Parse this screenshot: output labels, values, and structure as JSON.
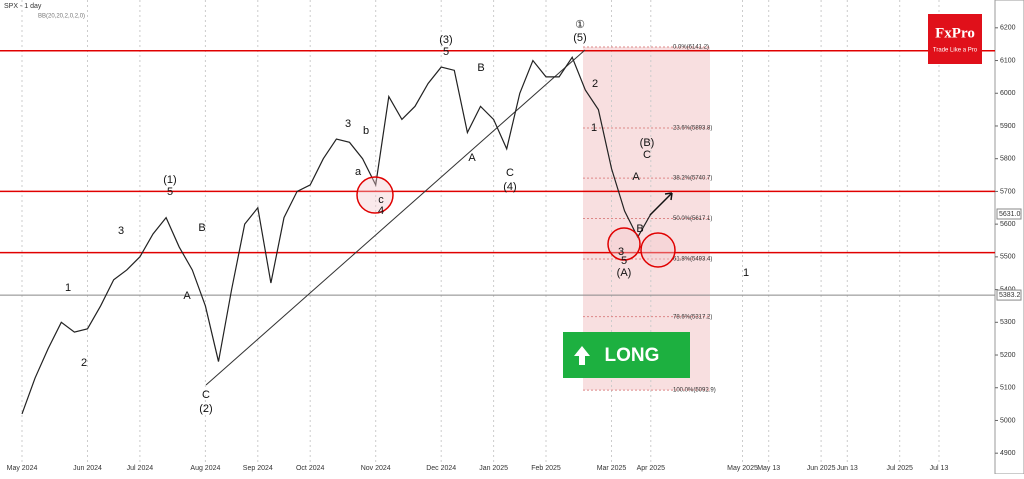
{
  "chart_data": {
    "type": "line",
    "title": "SPX - 1 day",
    "indicator": "BB(20,20,2,0,2,0)",
    "brand": {
      "name": "FxPro",
      "tagline": "Trade Like a Pro"
    },
    "signal": "LONG",
    "categories": [
      "May 2024",
      null,
      null,
      null,
      null,
      "Jun 2024",
      null,
      null,
      null,
      "Jul 2024",
      null,
      null,
      null,
      null,
      "Aug 2024",
      null,
      null,
      null,
      "Sep 2024",
      null,
      null,
      null,
      "Oct 2024",
      null,
      null,
      null,
      null,
      "Nov 2024",
      null,
      null,
      null,
      null,
      "Dec 2024",
      null,
      null,
      null,
      "Jan 2025",
      null,
      null,
      null,
      "Feb 2025",
      null,
      null,
      null,
      null,
      "Mar 2025",
      null,
      null,
      "Apr 2025",
      null,
      null,
      null,
      null,
      null,
      null,
      "May 2025",
      null,
      "May 13",
      null,
      null,
      null,
      "Jun 2025",
      null,
      "Jun 13",
      null,
      null,
      null,
      "Jul 2025",
      null,
      null,
      "Jul 13",
      null,
      null,
      null
    ],
    "series": [
      {
        "name": "SPX",
        "color": "#222222",
        "values": [
          5020,
          5130,
          5220,
          5300,
          5270,
          5280,
          5350,
          5430,
          5460,
          5500,
          5570,
          5620,
          5530,
          5460,
          5350,
          5180,
          5400,
          5600,
          5650,
          5420,
          5620,
          5700,
          5720,
          5800,
          5860,
          5850,
          5800,
          5720,
          5990,
          5920,
          5960,
          6030,
          6080,
          6070,
          5880,
          5960,
          5920,
          5830,
          6000,
          6100,
          6050,
          6050,
          6110,
          6010,
          5950,
          5770,
          5640,
          5560,
          5631,
          null,
          null,
          null,
          null,
          null,
          null,
          null,
          null,
          null,
          null,
          null,
          null,
          null,
          null,
          null,
          null,
          null,
          null,
          null,
          null,
          null,
          null,
          null,
          null,
          null
        ]
      }
    ],
    "ylim": [
      4870,
      6285
    ],
    "yticks": [
      4900,
      5000,
      5100,
      5200,
      5300,
      5400,
      5500,
      5600,
      5700,
      5800,
      5900,
      6000,
      6100,
      6200
    ],
    "levels": [
      {
        "value": 6130,
        "color": "#e00000"
      },
      {
        "value": 5700,
        "color": "#e00000"
      },
      {
        "value": 5513,
        "color": "#e00000"
      }
    ],
    "price_labels": [
      {
        "value": 5631,
        "label": "5631.0"
      },
      {
        "value": 5383.2,
        "label": "5383.2"
      }
    ],
    "fib_levels": [
      {
        "value": 6141.2,
        "label": "0.0%(6141.2)"
      },
      {
        "value": 5893.8,
        "label": "23.6%(5893.8)"
      },
      {
        "value": 5740.7,
        "label": "38.2%(5740.7)"
      },
      {
        "value": 5617.1,
        "label": "50.0%(5617.1)"
      },
      {
        "value": 5493.4,
        "label": "61.8%(5493.4)"
      },
      {
        "value": 5317.2,
        "label": "78.6%(5317.2)"
      },
      {
        "value": 5092.9,
        "label": "100.0%(5092.9)"
      }
    ],
    "annotations": [
      "(1)",
      "5",
      "3",
      "1",
      "2",
      "B",
      "A",
      "C",
      "(2)",
      "3",
      "a",
      "b",
      "c",
      "4",
      "(3)",
      "5",
      "B",
      "A",
      "C",
      "(4)",
      "①",
      "(5)",
      "2",
      "1",
      "(B)",
      "C",
      "A",
      "B",
      "3",
      "5",
      "(A)",
      "1"
    ]
  }
}
